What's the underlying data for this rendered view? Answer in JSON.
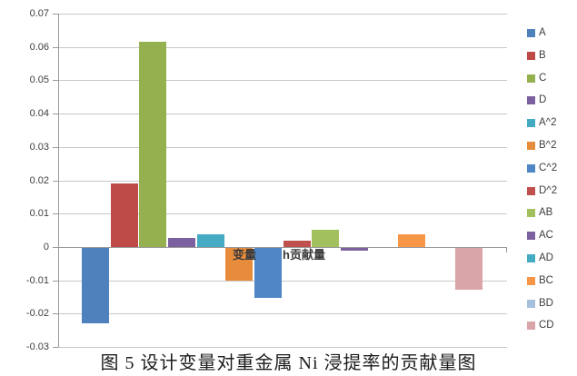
{
  "figure": {
    "caption": "图 5  设计变量对重金属 Ni 浸提率的贡献量图",
    "overlay_label_left": "变量",
    "overlay_label_right": "h贡献量"
  },
  "chart_data": {
    "type": "bar",
    "title": "",
    "xlabel": "",
    "ylabel": "",
    "categories": [
      "A",
      "B",
      "C",
      "D",
      "A^2",
      "B^2",
      "C^2",
      "D^2",
      "AB",
      "AC",
      "AD",
      "BC",
      "BD",
      "CD"
    ],
    "values": [
      -0.0225,
      0.019,
      0.0615,
      0.0026,
      0.0038,
      -0.0099,
      -0.015,
      0.0019,
      0.0053,
      -0.0008,
      0.0,
      0.0037,
      0.0,
      -0.0125
    ],
    "bar_colors": [
      "#4F81BD",
      "#BE4B48",
      "#94B04F",
      "#7C60A0",
      "#45AAC4",
      "#E78C3C",
      "#4E86C6",
      "#C0504D",
      "#A2C05D",
      "#7C60A0",
      "#45AAC4",
      "#F79646",
      "#A6C0DE",
      "#D9A5A8"
    ],
    "y_ticks": [
      0.07,
      0.06,
      0.05,
      0.04,
      0.03,
      0.02,
      0.01,
      0,
      -0.01,
      -0.02,
      -0.03
    ],
    "y_tick_labels": [
      "0.07",
      "0.06",
      "0.05",
      "0.04",
      "0.03",
      "0.02",
      "0.01",
      "0",
      "-0.01",
      "-0.02",
      "-0.03"
    ],
    "ylim": [
      -0.03,
      0.07
    ],
    "grid": true,
    "legend_position": "right",
    "legend_entries": [
      "A",
      "B",
      "C",
      "D",
      "A^2",
      "B^2",
      "C^2",
      "D^2",
      "AB",
      "AC",
      "AD",
      "BC",
      "BD",
      "CD"
    ]
  },
  "colors": {
    "gridline": "#c8c8c8",
    "axis": "#9a9a9a",
    "tick_text": "#3e3e3e",
    "legend_text": "#3e3e3e"
  }
}
